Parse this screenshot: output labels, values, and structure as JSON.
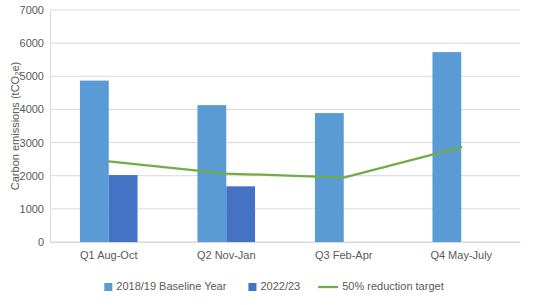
{
  "chart_data": {
    "type": "bar",
    "y_label": "Carbon emissions (tCO₂e)",
    "categories": [
      "Q1 Aug-Oct",
      "Q2 Nov-Jan",
      "Q3 Feb-Apr",
      "Q4 May-July"
    ],
    "series": [
      {
        "name": "2018/19 Baseline Year",
        "color": "#5b9bd5",
        "values": [
          4870,
          4130,
          3890,
          5730
        ]
      },
      {
        "name": "2022/23",
        "color": "#4472c4",
        "values": [
          2020,
          1680,
          null,
          null
        ]
      },
      {
        "name": "50% reduction target",
        "type": "line",
        "color": "#70ad47",
        "values": [
          2435,
          2065,
          1945,
          2865
        ]
      }
    ],
    "ylim": [
      0,
      7000
    ],
    "yticks": [
      0,
      1000,
      2000,
      3000,
      4000,
      5000,
      6000,
      7000
    ],
    "grid": true,
    "legend": "bottom"
  }
}
